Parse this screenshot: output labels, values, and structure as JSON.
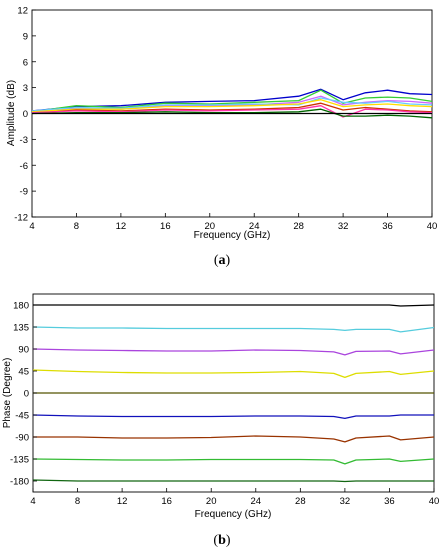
{
  "chart_data": [
    {
      "type": "line",
      "caption": "(a)",
      "xlabel": "Frequency (GHz)",
      "ylabel": "Amplitude (dB)",
      "xlim": [
        4,
        40
      ],
      "ylim": [
        -12,
        12
      ],
      "xticks": [
        "4",
        "8",
        "12",
        "16",
        "20",
        "24",
        "28",
        "32",
        "36",
        "40"
      ],
      "yticks": [
        "12",
        "9",
        "6",
        "3",
        "0",
        "-3",
        "-6",
        "-9",
        "-12"
      ],
      "grid": false,
      "x": [
        4,
        8,
        12,
        16,
        20,
        24,
        28,
        30,
        32,
        34,
        36,
        38,
        40
      ],
      "series": [
        {
          "color": "#0000cc",
          "values": [
            0.3,
            0.8,
            0.9,
            1.3,
            1.4,
            1.5,
            2.0,
            2.8,
            1.6,
            2.4,
            2.7,
            2.3,
            2.2
          ]
        },
        {
          "color": "#33cc33",
          "values": [
            0.2,
            0.9,
            0.7,
            1.2,
            1.1,
            1.3,
            1.5,
            2.7,
            1.2,
            1.8,
            1.9,
            1.8,
            1.4
          ]
        },
        {
          "color": "#cc66ff",
          "values": [
            0.1,
            0.6,
            0.5,
            0.9,
            0.9,
            1.0,
            1.3,
            2.0,
            1.0,
            1.3,
            1.5,
            1.4,
            1.2
          ]
        },
        {
          "color": "#66ccff",
          "values": [
            0.3,
            0.7,
            0.6,
            1.0,
            1.0,
            1.1,
            1.0,
            1.8,
            1.3,
            1.2,
            1.4,
            1.1,
            1.0
          ]
        },
        {
          "color": "#ffdd00",
          "values": [
            0.2,
            0.5,
            0.5,
            0.8,
            0.8,
            0.9,
            1.1,
            1.6,
            0.8,
            1.0,
            1.1,
            0.9,
            0.8
          ]
        },
        {
          "color": "#cc3300",
          "values": [
            0.0,
            0.4,
            0.3,
            0.5,
            0.4,
            0.5,
            0.7,
            1.2,
            0.4,
            0.7,
            0.5,
            0.3,
            0.2
          ]
        },
        {
          "color": "#ff33aa",
          "values": [
            0.1,
            0.3,
            0.2,
            0.4,
            0.3,
            0.4,
            0.5,
            0.9,
            -0.4,
            0.5,
            0.4,
            0.2,
            0.1
          ]
        },
        {
          "color": "#006600",
          "values": [
            0.0,
            0.1,
            0.1,
            0.2,
            0.1,
            0.1,
            0.2,
            0.5,
            -0.3,
            -0.3,
            -0.2,
            -0.3,
            -0.5
          ]
        },
        {
          "color": "#000000",
          "values": [
            0.0,
            0.0,
            0.0,
            0.0,
            0.0,
            0.0,
            0.0,
            0.0,
            0.0,
            0.0,
            0.0,
            0.0,
            0.0
          ]
        }
      ]
    },
    {
      "type": "line",
      "caption": "(b)",
      "xlabel": "Frequency (GHz)",
      "ylabel": "Phase (Degree)",
      "xlim": [
        4,
        40
      ],
      "ylim": [
        -202.5,
        202.5
      ],
      "xticks": [
        "4",
        "8",
        "12",
        "16",
        "20",
        "24",
        "28",
        "32",
        "36",
        "40"
      ],
      "yticks": [
        "180",
        "135",
        "90",
        "45",
        "0",
        "-45",
        "-90",
        "-135",
        "-180"
      ],
      "ytick_values": [
        180,
        135,
        90,
        45,
        0,
        -45,
        -90,
        -135,
        -180
      ],
      "grid": false,
      "x": [
        4,
        8,
        12,
        16,
        20,
        24,
        28,
        31,
        32,
        33,
        36,
        37,
        40
      ],
      "series": [
        {
          "color": "#000000",
          "values": [
            180,
            180,
            180,
            180,
            180,
            180,
            180,
            180,
            180,
            180,
            180,
            178,
            180
          ]
        },
        {
          "color": "#55ccdd",
          "values": [
            135,
            133,
            133,
            132,
            132,
            132,
            132,
            130,
            128,
            130,
            130,
            125,
            134
          ]
        },
        {
          "color": "#aa44dd",
          "values": [
            90,
            88,
            87,
            86,
            86,
            88,
            87,
            84,
            78,
            85,
            86,
            80,
            88
          ]
        },
        {
          "color": "#dddd00",
          "values": [
            47,
            44,
            42,
            41,
            41,
            42,
            44,
            40,
            32,
            40,
            44,
            38,
            45
          ]
        },
        {
          "color": "#555500",
          "values": [
            0,
            0,
            0,
            0,
            0,
            0,
            0,
            0,
            0,
            0,
            0,
            0,
            0
          ]
        },
        {
          "color": "#1111bb",
          "values": [
            -45,
            -47,
            -48,
            -48,
            -48,
            -47,
            -47,
            -48,
            -52,
            -47,
            -47,
            -45,
            -45
          ]
        },
        {
          "color": "#993300",
          "values": [
            -90,
            -90,
            -92,
            -92,
            -91,
            -88,
            -90,
            -94,
            -100,
            -92,
            -88,
            -96,
            -90
          ]
        },
        {
          "color": "#33bb33",
          "values": [
            -135,
            -136,
            -137,
            -137,
            -136,
            -136,
            -136,
            -137,
            -145,
            -137,
            -135,
            -140,
            -135
          ]
        },
        {
          "color": "#116611",
          "values": [
            -178,
            -180,
            -180,
            -180,
            -180,
            -180,
            -180,
            -180,
            -181,
            -180,
            -180,
            -180,
            -180
          ]
        }
      ]
    }
  ]
}
